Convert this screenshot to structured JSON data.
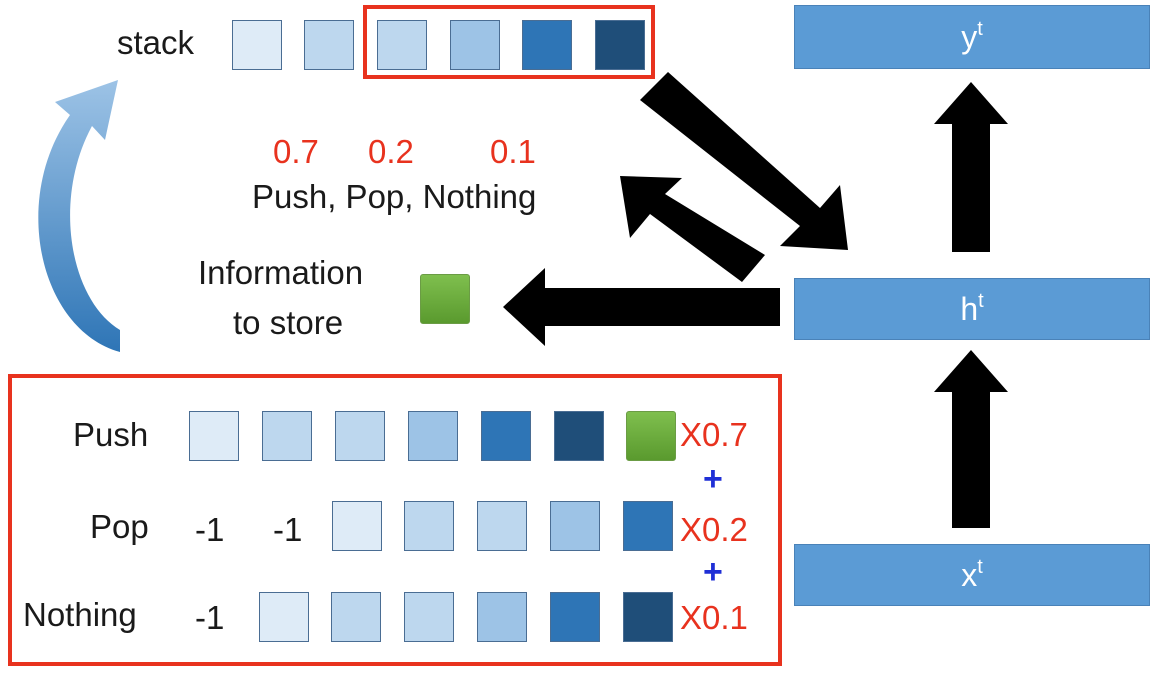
{
  "stack_label": "stack",
  "probs": {
    "push": "0.7",
    "pop": "0.2",
    "nothing": "0.1"
  },
  "actions_text": "Push, Pop, Nothing",
  "info_line1": "Information",
  "info_line2": "to store",
  "rows": {
    "push": {
      "label": "Push",
      "multiplier": "X0.7"
    },
    "pop": {
      "label": "Pop",
      "multiplier": "X0.2",
      "pad1": "-1",
      "pad2": "-1"
    },
    "nothing": {
      "label": "Nothing",
      "multiplier": "X0.1",
      "pad1": "-1"
    }
  },
  "plus": "+",
  "nodes": {
    "y": "y",
    "h": "h",
    "x": "x",
    "sup": "t"
  },
  "colors": {
    "c1": "#deebf7",
    "c2": "#bdd7ee",
    "c3": "#bdd7ee",
    "c4": "#9dc3e6",
    "c5": "#2e75b6",
    "c6": "#1f4e79",
    "accent_red": "#e8321e",
    "node_blue": "#5b9bd5"
  }
}
